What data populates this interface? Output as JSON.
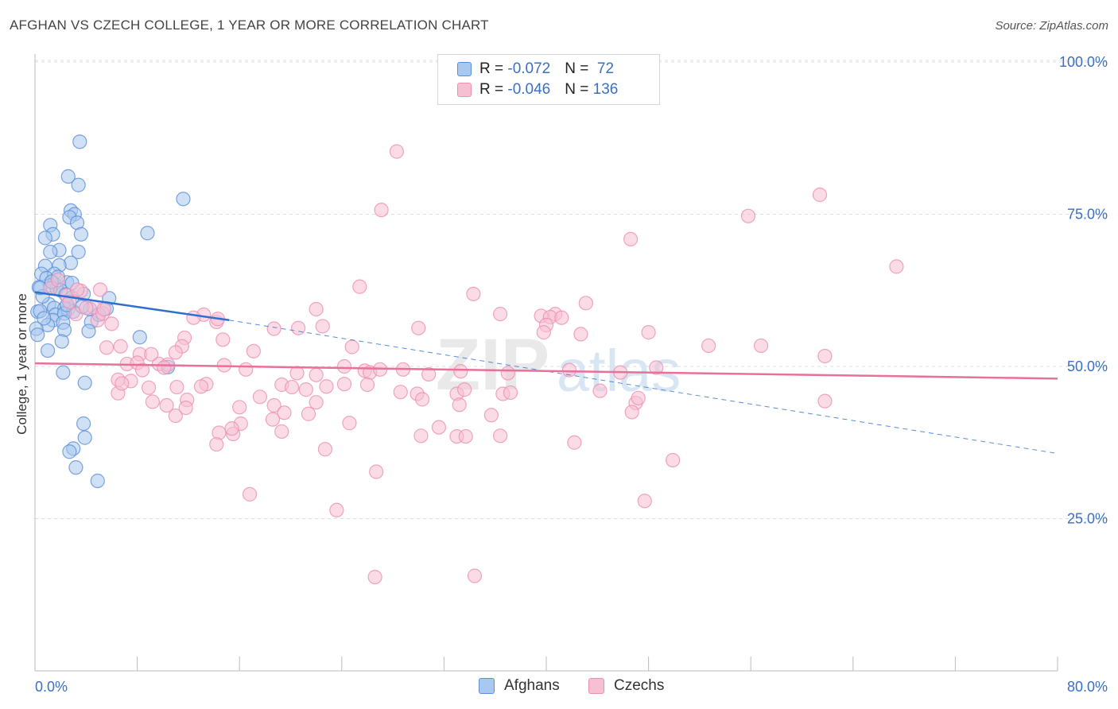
{
  "title": "AFGHAN VS CZECH COLLEGE, 1 YEAR OR MORE CORRELATION CHART",
  "source": "Source: ZipAtlas.com",
  "watermark": "ZIPatlas",
  "legend_stats": [
    {
      "r_label": "R = ",
      "r_value": "-0.072",
      "n_label": "N = ",
      "n_value": " 72"
    },
    {
      "r_label": "R = ",
      "r_value": "-0.046",
      "n_label": "N = ",
      "n_value": "136"
    }
  ],
  "colors": {
    "afghans_fill": "#a9c8ef",
    "afghans_stroke": "#5b8fd6",
    "afghans_line": "#2e6fd0",
    "czechs_fill": "#f7bfd2",
    "czechs_stroke": "#ec8fb0",
    "czechs_line": "#e8709a",
    "tick_label": "#3a6fc4",
    "grid": "#dddddd"
  },
  "chart_data": {
    "type": "scatter",
    "title": "AFGHAN VS CZECH COLLEGE, 1 YEAR OR MORE CORRELATION CHART",
    "xlabel": "",
    "ylabel": "College, 1 year or more",
    "xlim": [
      0,
      80
    ],
    "ylim": [
      0,
      105
    ],
    "x_tick_labels": [
      "0.0%",
      "80.0%"
    ],
    "y_ticks": [
      25,
      50,
      75,
      100
    ],
    "y_tick_labels": [
      "25.0%",
      "50.0%",
      "75.0%",
      "100.0%"
    ],
    "grid": true,
    "legend": "bottom-center",
    "series": [
      {
        "name": "Afghans",
        "r": -0.072,
        "n": 72,
        "trend": {
          "x0": 0,
          "y0": 62.2,
          "x1": 15.2,
          "y1": 57.6,
          "dashed_to_x": 80,
          "dashed_to_y": 35.7
        },
        "points": [
          [
            3.5,
            86.9
          ],
          [
            2.6,
            81.2
          ],
          [
            3.4,
            79.8
          ],
          [
            11.6,
            77.5
          ],
          [
            2.8,
            75.6
          ],
          [
            3.1,
            75.0
          ],
          [
            2.7,
            74.5
          ],
          [
            1.2,
            73.2
          ],
          [
            3.3,
            73.6
          ],
          [
            8.8,
            71.9
          ],
          [
            1.4,
            71.7
          ],
          [
            0.8,
            71.1
          ],
          [
            3.6,
            71.7
          ],
          [
            1.9,
            69.1
          ],
          [
            1.2,
            68.8
          ],
          [
            3.4,
            68.8
          ],
          [
            2.8,
            67.0
          ],
          [
            0.8,
            66.5
          ],
          [
            1.9,
            66.6
          ],
          [
            0.5,
            65.2
          ],
          [
            1.5,
            65.2
          ],
          [
            0.9,
            64.5
          ],
          [
            2.5,
            63.8
          ],
          [
            1.5,
            63.6
          ],
          [
            0.3,
            63.0
          ],
          [
            1.2,
            63.3
          ],
          [
            1.7,
            62.8
          ],
          [
            2.0,
            62.5
          ],
          [
            3.8,
            61.9
          ],
          [
            2.4,
            61.8
          ],
          [
            2.9,
            61.3
          ],
          [
            5.8,
            61.2
          ],
          [
            1.1,
            60.2
          ],
          [
            1.5,
            59.6
          ],
          [
            2.6,
            59.4
          ],
          [
            2.3,
            59.5
          ],
          [
            4.3,
            59.4
          ],
          [
            5.6,
            59.5
          ],
          [
            3.0,
            59.0
          ],
          [
            1.6,
            58.5
          ],
          [
            0.2,
            59.0
          ],
          [
            0.4,
            59.1
          ],
          [
            2.3,
            58.7
          ],
          [
            4.4,
            57.3
          ],
          [
            1.4,
            57.6
          ],
          [
            2.2,
            57.2
          ],
          [
            1.0,
            56.8
          ],
          [
            2.3,
            56.0
          ],
          [
            4.2,
            55.8
          ],
          [
            8.2,
            54.8
          ],
          [
            2.1,
            54.1
          ],
          [
            1.0,
            52.6
          ],
          [
            10.4,
            49.9
          ],
          [
            2.2,
            49.0
          ],
          [
            3.9,
            47.3
          ],
          [
            0.1,
            56.2
          ],
          [
            0.2,
            55.2
          ],
          [
            3.8,
            40.6
          ],
          [
            3.9,
            38.3
          ],
          [
            3.0,
            36.5
          ],
          [
            2.7,
            36.0
          ],
          [
            3.2,
            33.4
          ],
          [
            4.9,
            31.2
          ],
          [
            0.6,
            61.5
          ],
          [
            0.4,
            62.9
          ],
          [
            2.9,
            63.7
          ],
          [
            1.8,
            64.7
          ],
          [
            5.0,
            58.5
          ],
          [
            1.3,
            63.9
          ],
          [
            2.5,
            60.1
          ],
          [
            0.7,
            57.9
          ],
          [
            3.7,
            59.8
          ]
        ]
      },
      {
        "name": "Czechs",
        "r": -0.046,
        "n": 136,
        "trend": {
          "x0": 0,
          "y0": 50.5,
          "x1": 80,
          "y1": 48.0
        },
        "points": [
          [
            28.3,
            85.3
          ],
          [
            61.4,
            78.2
          ],
          [
            27.1,
            75.7
          ],
          [
            55.8,
            74.7
          ],
          [
            46.6,
            70.9
          ],
          [
            67.4,
            66.4
          ],
          [
            25.4,
            63.1
          ],
          [
            34.3,
            61.9
          ],
          [
            43.1,
            60.4
          ],
          [
            22.0,
            59.4
          ],
          [
            13.2,
            58.5
          ],
          [
            36.4,
            58.6
          ],
          [
            40.7,
            58.6
          ],
          [
            39.6,
            58.3
          ],
          [
            40.3,
            58.1
          ],
          [
            41.2,
            58.0
          ],
          [
            14.2,
            57.3
          ],
          [
            4.6,
            59.7
          ],
          [
            4.9,
            57.6
          ],
          [
            5.3,
            58.7
          ],
          [
            2.5,
            61.7
          ],
          [
            1.2,
            62.8
          ],
          [
            2.7,
            60.6
          ],
          [
            3.2,
            58.6
          ],
          [
            18.7,
            56.2
          ],
          [
            20.6,
            56.3
          ],
          [
            22.5,
            56.6
          ],
          [
            30.0,
            56.3
          ],
          [
            40.0,
            56.8
          ],
          [
            42.7,
            55.3
          ],
          [
            48.0,
            55.6
          ],
          [
            14.7,
            54.4
          ],
          [
            11.7,
            54.7
          ],
          [
            11.5,
            53.3
          ],
          [
            52.7,
            53.4
          ],
          [
            56.8,
            53.4
          ],
          [
            61.8,
            51.7
          ],
          [
            17.1,
            52.5
          ],
          [
            24.8,
            53.2
          ],
          [
            8.2,
            52.0
          ],
          [
            5.6,
            53.1
          ],
          [
            7.2,
            50.4
          ],
          [
            8.0,
            50.6
          ],
          [
            9.7,
            50.4
          ],
          [
            10.4,
            50.3
          ],
          [
            10.1,
            49.8
          ],
          [
            8.4,
            49.4
          ],
          [
            16.5,
            49.5
          ],
          [
            20.5,
            48.9
          ],
          [
            22.0,
            48.6
          ],
          [
            24.2,
            50.0
          ],
          [
            25.8,
            49.3
          ],
          [
            26.2,
            49.0
          ],
          [
            28.8,
            49.5
          ],
          [
            30.8,
            48.7
          ],
          [
            33.3,
            49.2
          ],
          [
            37.0,
            48.9
          ],
          [
            41.8,
            49.4
          ],
          [
            45.8,
            49.0
          ],
          [
            48.6,
            49.8
          ],
          [
            6.5,
            47.8
          ],
          [
            7.5,
            47.6
          ],
          [
            13.4,
            47.1
          ],
          [
            19.3,
            47.0
          ],
          [
            20.1,
            46.6
          ],
          [
            22.8,
            46.7
          ],
          [
            24.2,
            47.1
          ],
          [
            26.0,
            47.0
          ],
          [
            13.0,
            46.7
          ],
          [
            8.9,
            46.5
          ],
          [
            11.1,
            46.6
          ],
          [
            6.5,
            45.6
          ],
          [
            17.6,
            45.0
          ],
          [
            21.2,
            46.2
          ],
          [
            28.6,
            45.8
          ],
          [
            29.9,
            45.5
          ],
          [
            33.0,
            45.5
          ],
          [
            36.6,
            45.5
          ],
          [
            37.2,
            45.7
          ],
          [
            44.2,
            46.0
          ],
          [
            11.9,
            44.5
          ],
          [
            9.2,
            44.2
          ],
          [
            10.3,
            43.6
          ],
          [
            16.0,
            43.3
          ],
          [
            18.7,
            43.6
          ],
          [
            22.0,
            44.1
          ],
          [
            30.3,
            44.6
          ],
          [
            33.2,
            43.7
          ],
          [
            47.0,
            44.0
          ],
          [
            61.8,
            44.3
          ],
          [
            19.5,
            42.4
          ],
          [
            11.0,
            41.9
          ],
          [
            11.8,
            43.2
          ],
          [
            21.4,
            42.2
          ],
          [
            18.6,
            41.3
          ],
          [
            16.1,
            40.6
          ],
          [
            24.6,
            40.7
          ],
          [
            35.7,
            42.0
          ],
          [
            46.7,
            42.5
          ],
          [
            14.4,
            39.1
          ],
          [
            15.5,
            38.9
          ],
          [
            19.3,
            39.3
          ],
          [
            30.2,
            38.6
          ],
          [
            31.6,
            40.0
          ],
          [
            33.0,
            38.5
          ],
          [
            36.4,
            38.6
          ],
          [
            15.4,
            39.8
          ],
          [
            42.2,
            37.5
          ],
          [
            14.2,
            37.2
          ],
          [
            22.7,
            36.4
          ],
          [
            49.9,
            34.6
          ],
          [
            26.7,
            32.7
          ],
          [
            16.8,
            29.0
          ],
          [
            47.7,
            27.9
          ],
          [
            23.6,
            26.4
          ],
          [
            26.6,
            15.4
          ],
          [
            34.4,
            15.6
          ],
          [
            33.7,
            38.5
          ],
          [
            12.4,
            58.0
          ],
          [
            6.8,
            47.2
          ],
          [
            14.3,
            57.8
          ],
          [
            3.6,
            62.4
          ],
          [
            5.1,
            62.6
          ],
          [
            1.8,
            64.2
          ],
          [
            39.8,
            55.6
          ],
          [
            4.0,
            59.6
          ],
          [
            3.3,
            62.6
          ],
          [
            6.7,
            53.3
          ],
          [
            9.1,
            52.0
          ],
          [
            11.0,
            52.3
          ],
          [
            14.8,
            50.2
          ],
          [
            27.0,
            49.5
          ],
          [
            33.6,
            46.2
          ],
          [
            47.2,
            44.8
          ],
          [
            6.0,
            57.0
          ],
          [
            5.4,
            59.4
          ]
        ]
      }
    ]
  }
}
